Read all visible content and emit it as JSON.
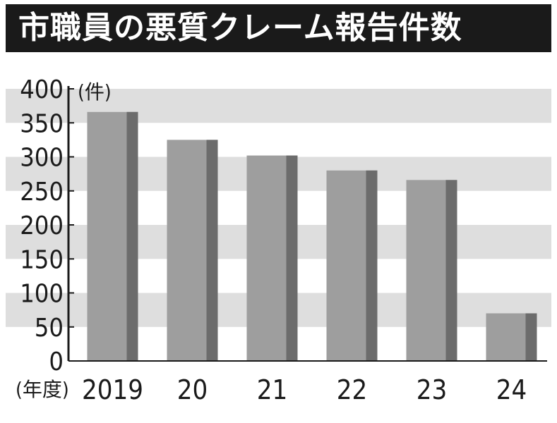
{
  "title": "市職員の悪質クレーム報告件数",
  "chart_data": {
    "type": "bar",
    "title": "市職員の悪質クレーム報告件数",
    "ylabel": "(件)",
    "xlabel": "(年度)",
    "categories": [
      "2019",
      "20",
      "21",
      "22",
      "23",
      "24"
    ],
    "values": [
      366,
      325,
      302,
      280,
      266,
      70
    ],
    "ylim": [
      0,
      400
    ],
    "yticks": [
      0,
      50,
      100,
      150,
      200,
      250,
      300,
      350,
      400
    ],
    "grid": true
  },
  "colors": {
    "title_bg": "#1a1a1a",
    "title_text": "#ffffff",
    "band": "#dedede",
    "bar": "#9e9e9e",
    "bar_side": "#6c6c6c",
    "axis": "#1a1a1a"
  }
}
